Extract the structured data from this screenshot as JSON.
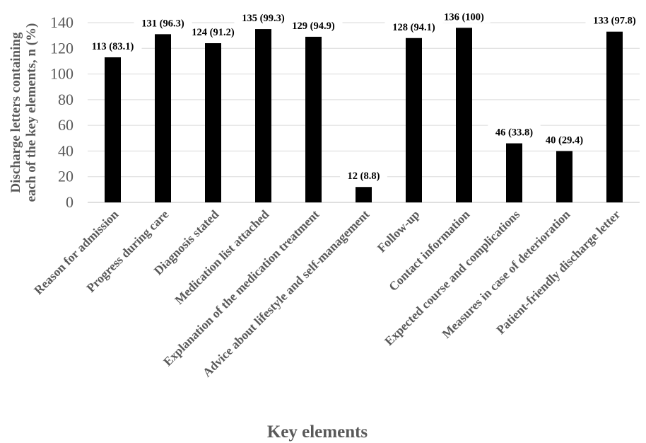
{
  "chart_data": {
    "type": "bar",
    "categories": [
      "Reason for admission",
      "Progress during care",
      "Diagnosis stated",
      "Medication list attached",
      "Explanation of the medication treatment",
      "Advice about lifestyle and self-management",
      "Follow-up",
      "Contact information",
      "Expected course and complications",
      "Measures in case of deterioration",
      "Patient-friendly discharge letter"
    ],
    "values": [
      113,
      131,
      124,
      135,
      129,
      12,
      128,
      136,
      46,
      40,
      133
    ],
    "data_labels": [
      "113 (83.1)",
      "131 (96.3)",
      "124 (91.2)",
      "135 (99.3)",
      "129 (94.9)",
      "12 (8.8)",
      "128 (94.1)",
      "136 (100)",
      "46 (33.8)",
      "40 (29.4)",
      "133 (97.8)"
    ],
    "yticks": [
      0,
      20,
      40,
      60,
      80,
      100,
      120,
      140
    ],
    "ylim": [
      0,
      140
    ],
    "ylabel_line1": "Discharge letters containing",
    "ylabel_line2": "each of the key elements, n (%)",
    "xlabel": "Key elements",
    "grid": true,
    "bar_color": "#000000",
    "grid_color": "#d9d9d9"
  }
}
